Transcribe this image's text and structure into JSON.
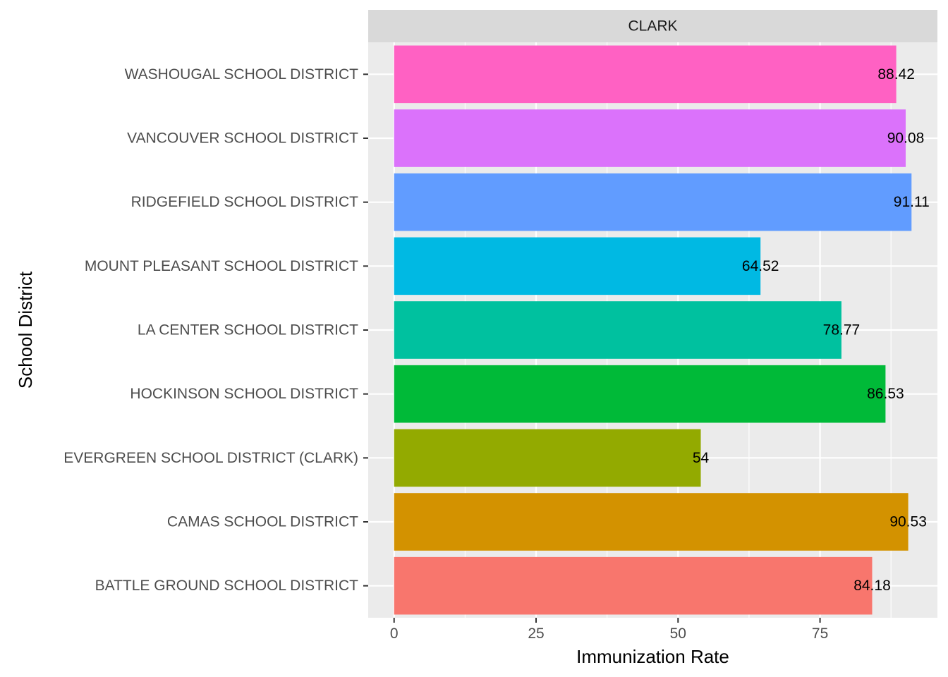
{
  "chart_data": {
    "type": "bar",
    "orientation": "horizontal",
    "facet": "CLARK",
    "categories": [
      "BATTLE GROUND SCHOOL DISTRICT",
      "CAMAS SCHOOL DISTRICT",
      "EVERGREEN SCHOOL DISTRICT (CLARK)",
      "HOCKINSON SCHOOL DISTRICT",
      "LA CENTER SCHOOL DISTRICT",
      "MOUNT PLEASANT SCHOOL DISTRICT",
      "RIDGEFIELD SCHOOL DISTRICT",
      "VANCOUVER SCHOOL DISTRICT",
      "WASHOUGAL SCHOOL DISTRICT"
    ],
    "values": [
      84.18,
      90.53,
      54,
      86.53,
      78.77,
      64.52,
      91.11,
      90.08,
      88.42
    ],
    "data_labels": [
      "84.18",
      "90.53",
      "54",
      "86.53",
      "78.77",
      "64.52",
      "91.11",
      "90.08",
      "88.42"
    ],
    "colors": [
      "#F8766D",
      "#D39200",
      "#93AA00",
      "#00BA38",
      "#00C19F",
      "#00B9E3",
      "#619CFF",
      "#DB72FB",
      "#FF61C3"
    ],
    "xlabel": "Immunization Rate",
    "ylabel": "School District",
    "x_ticks": [
      0,
      25,
      50,
      75
    ],
    "x_tick_labels": [
      "0",
      "25",
      "50",
      "75"
    ],
    "xlim": [
      -4.56,
      95.67
    ],
    "grid": true,
    "legend": "none",
    "panel_background": "#EBEBEB",
    "strip_background": "#D9D9D9"
  }
}
